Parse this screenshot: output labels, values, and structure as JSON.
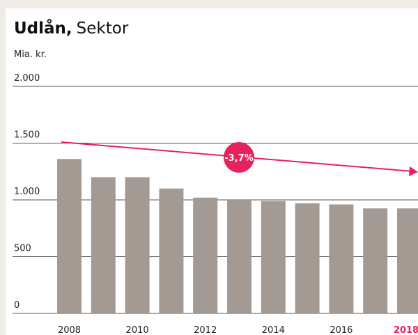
{
  "chart_data": {
    "type": "bar",
    "title": "Udlån,",
    "title_suffix": "Sektor",
    "subtitle": "Mia. kr.",
    "annotation": "-3,7%",
    "categories": [
      "2008",
      null,
      "2010",
      null,
      "2012",
      null,
      "2014",
      null,
      "2016",
      null,
      "2018"
    ],
    "values": [
      1360,
      1200,
      1200,
      1100,
      1020,
      1005,
      990,
      970,
      960,
      925,
      925
    ],
    "color": "#a39a93",
    "ylim": [
      0,
      2000
    ],
    "yticks": [
      {
        "value": 0,
        "label": "0"
      },
      {
        "value": 500,
        "label": "500"
      },
      {
        "value": 1000,
        "label": "1.000"
      },
      {
        "value": 1500,
        "label": "1.500"
      },
      {
        "value": 2000,
        "label": "2.000"
      }
    ],
    "grid": true
  }
}
